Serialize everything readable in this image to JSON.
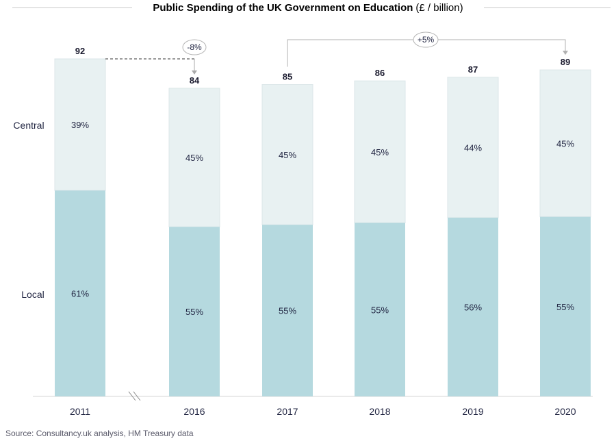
{
  "chart_data": {
    "type": "bar",
    "stacked": true,
    "stack_mode": "percent-of-total",
    "title": "Public Spending of the UK Government on Education",
    "title_unit": "(£ / billion)",
    "categories": [
      "2011",
      "2016",
      "2017",
      "2018",
      "2019",
      "2020"
    ],
    "totals": [
      92,
      84,
      85,
      86,
      87,
      89
    ],
    "total_labels": [
      "92",
      "84",
      "85",
      "86",
      "87",
      "89"
    ],
    "series": [
      {
        "name": "Local",
        "percent_labels": [
          "61%",
          "55%",
          "55%",
          "55%",
          "56%",
          "55%"
        ],
        "share": [
          0.61,
          0.55,
          0.55,
          0.55,
          0.56,
          0.55
        ],
        "color": "#b5d9df"
      },
      {
        "name": "Central",
        "percent_labels": [
          "39%",
          "45%",
          "45%",
          "45%",
          "44%",
          "45%"
        ],
        "share": [
          0.39,
          0.45,
          0.45,
          0.45,
          0.44,
          0.45
        ],
        "color": "#e8f1f2"
      }
    ],
    "axis_break_between": [
      "2011",
      "2016"
    ],
    "annotations": [
      {
        "label": "-8%",
        "from": "2011",
        "to": "2016"
      },
      {
        "label": "+5%",
        "from": "2017",
        "to": "2020"
      }
    ],
    "grid": false,
    "legend": "left side labels",
    "source": "Source: Consultancy.uk analysis, HM Treasury data"
  }
}
